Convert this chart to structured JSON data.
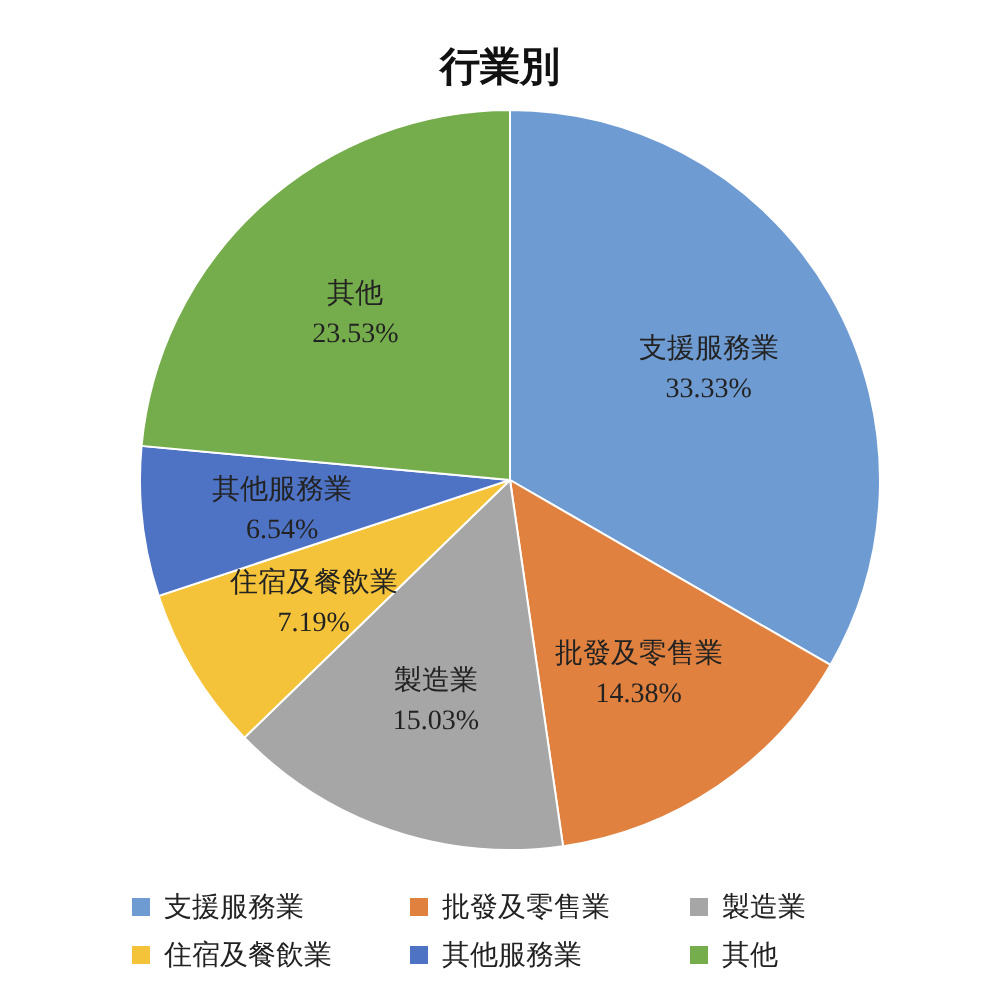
{
  "chart_data": {
    "type": "pie",
    "title": "行業別",
    "categories": [
      "支援服務業",
      "批發及零售業",
      "製造業",
      "住宿及餐飲業",
      "其他服務業",
      "其他"
    ],
    "values": [
      33.33,
      14.38,
      15.03,
      7.19,
      6.54,
      23.53
    ],
    "value_labels": [
      "33.33%",
      "14.38%",
      "15.03%",
      "7.19%",
      "6.54%",
      "23.53%"
    ],
    "colors": [
      "#6f9bd3",
      "#e0813f",
      "#a6a6a6",
      "#f4c33a",
      "#4e72c4",
      "#76ad4c"
    ],
    "legend": "bottom"
  }
}
